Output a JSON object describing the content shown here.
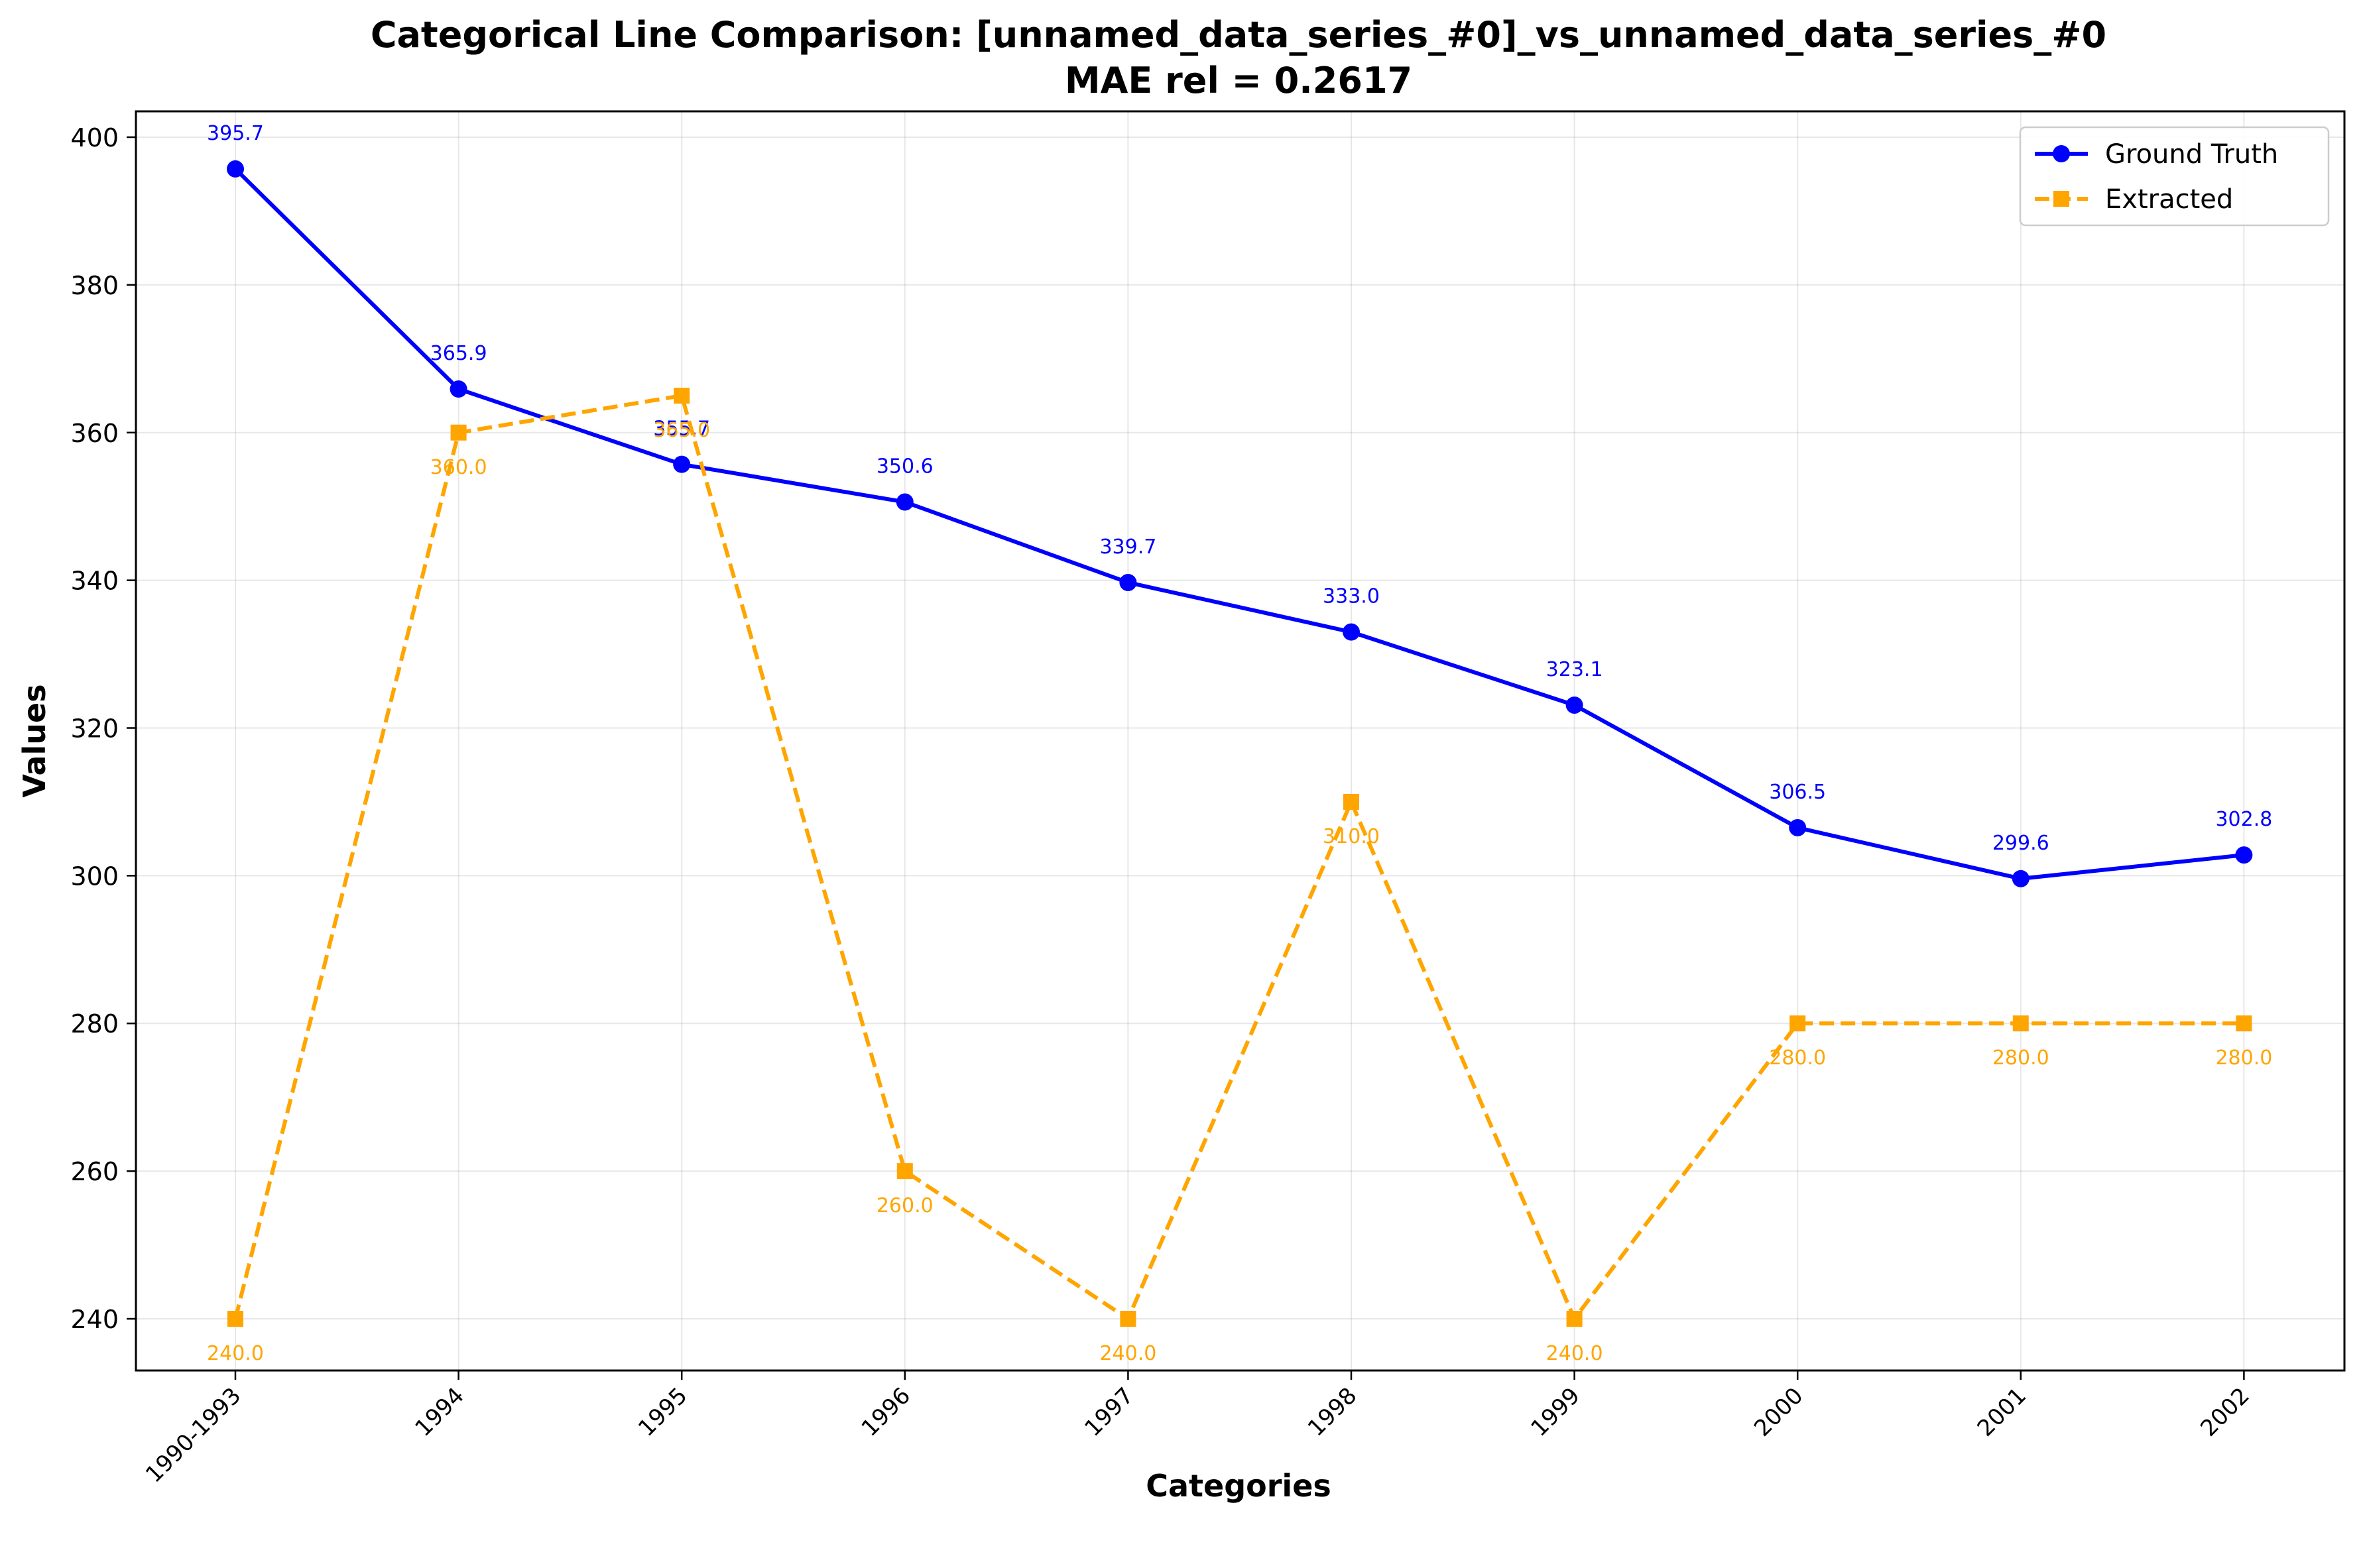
{
  "chart_data": {
    "type": "line",
    "title": "Categorical Line Comparison: [unnamed_data_series_#0]_vs_unnamed_data_series_#0",
    "subtitle": "MAE rel = 0.2617",
    "xlabel": "Categories",
    "ylabel": "Values",
    "categories": [
      "1990-1993",
      "1994",
      "1995",
      "1996",
      "1997",
      "1998",
      "1999",
      "2000",
      "2001",
      "2002"
    ],
    "ylim": [
      233,
      403.5
    ],
    "yticks": [
      240,
      260,
      280,
      300,
      320,
      340,
      360,
      380,
      400
    ],
    "grid": true,
    "legend_position": "top-right",
    "series": [
      {
        "name": "Ground Truth",
        "color": "#0000ff",
        "marker": "circle",
        "line_style": "solid",
        "values": [
          395.7,
          365.9,
          355.7,
          350.6,
          339.7,
          333.0,
          323.1,
          306.5,
          299.6,
          302.8
        ],
        "labels": [
          "395.7",
          "365.9",
          "355.7",
          "350.6",
          "339.7",
          "333.0",
          "323.1",
          "306.5",
          "299.6",
          "302.8"
        ]
      },
      {
        "name": "Extracted",
        "color": "#ffa500",
        "marker": "square",
        "line_style": "dashed",
        "values": [
          240.0,
          360.0,
          365.0,
          260.0,
          240.0,
          310.0,
          240.0,
          280.0,
          280.0,
          280.0
        ],
        "labels": [
          "240.0",
          "360.0",
          "365.0",
          "260.0",
          "240.0",
          "310.0",
          "240.0",
          "280.0",
          "280.0",
          "280.0"
        ]
      }
    ]
  }
}
